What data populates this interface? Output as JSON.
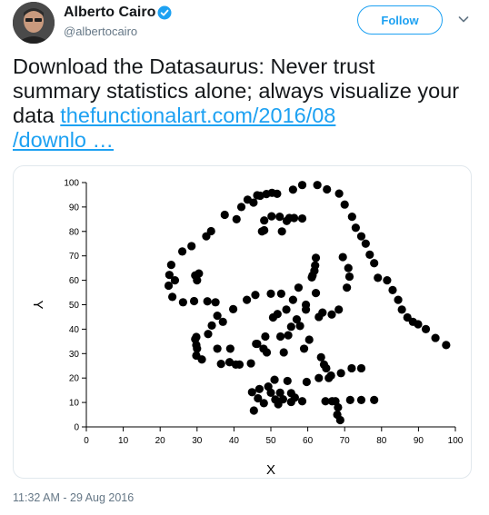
{
  "author": {
    "name": "Alberto Cairo",
    "handle": "@albertocairo",
    "verified_icon": "verified-badge-icon"
  },
  "header": {
    "follow_label": "Follow",
    "menu_icon": "chevron-down-icon"
  },
  "tweet": {
    "text": "Download the Datasaurus: Never trust summary statistics alone; always visualize your data ",
    "link_line1": "thefunctionalart.com/2016/08",
    "link_line2": "/downlo …"
  },
  "timestamp": "11:32 AM - 29 Aug 2016",
  "colors": {
    "accent": "#1da1f2",
    "text": "#14171a",
    "muted": "#657786",
    "border": "#e1e8ed",
    "points": "#000000"
  },
  "chart_data": {
    "type": "scatter",
    "title": "",
    "xlabel": "X",
    "ylabel": "Y",
    "xlim": [
      0,
      100
    ],
    "ylim": [
      0,
      100
    ],
    "xticks": [
      0,
      10,
      20,
      30,
      40,
      50,
      60,
      70,
      80,
      90,
      100
    ],
    "yticks": [
      0,
      10,
      20,
      30,
      40,
      50,
      60,
      70,
      80,
      90,
      100
    ],
    "grid": false,
    "points": [
      [
        22.3,
        57.8
      ],
      [
        22.5,
        62.2
      ],
      [
        23.0,
        66.3
      ],
      [
        23.3,
        53.2
      ],
      [
        24.0,
        60.0
      ],
      [
        26.0,
        71.8
      ],
      [
        26.2,
        51.0
      ],
      [
        28.5,
        74.0
      ],
      [
        29.2,
        51.5
      ],
      [
        29.5,
        62.0
      ],
      [
        30.5,
        62.8
      ],
      [
        30.0,
        60.0
      ],
      [
        29.8,
        36.8
      ],
      [
        29.5,
        35.9
      ],
      [
        30.0,
        32.0
      ],
      [
        29.8,
        29.2
      ],
      [
        29.8,
        33.5
      ],
      [
        31.3,
        27.6
      ],
      [
        32.8,
        51.4
      ],
      [
        34.0,
        41.5
      ],
      [
        32.5,
        78.0
      ],
      [
        33.8,
        80.1
      ],
      [
        35.0,
        51.0
      ],
      [
        35.5,
        32.0
      ],
      [
        36.5,
        25.8
      ],
      [
        37.0,
        43.0
      ],
      [
        37.5,
        86.8
      ],
      [
        38.8,
        26.5
      ],
      [
        39.0,
        32.0
      ],
      [
        39.8,
        48.2
      ],
      [
        40.5,
        25.5
      ],
      [
        40.7,
        85.0
      ],
      [
        41.5,
        25.5
      ],
      [
        42.0,
        90.0
      ],
      [
        43.5,
        52.0
      ],
      [
        43.7,
        93.0
      ],
      [
        44.6,
        26.0
      ],
      [
        44.9,
        14.2
      ],
      [
        45.3,
        91.8
      ],
      [
        45.8,
        54.0
      ],
      [
        45.4,
        6.7
      ],
      [
        46.0,
        34.0
      ],
      [
        46.3,
        94.8
      ],
      [
        46.5,
        11.7
      ],
      [
        46.9,
        15.5
      ],
      [
        47.1,
        94.6
      ],
      [
        47.6,
        80.0
      ],
      [
        48.1,
        9.7
      ],
      [
        48.2,
        80.5
      ],
      [
        48.8,
        95.3
      ],
      [
        48.5,
        37.0
      ],
      [
        48.2,
        84.5
      ],
      [
        48.9,
        30.5
      ],
      [
        49.3,
        16.5
      ],
      [
        50.3,
        95.8
      ],
      [
        50.2,
        86.2
      ],
      [
        50.0,
        54.5
      ],
      [
        50.0,
        14.0
      ],
      [
        50.6,
        44.8
      ],
      [
        51.0,
        19.3
      ],
      [
        51.7,
        95.4
      ],
      [
        51.2,
        11.2
      ],
      [
        51.8,
        46.2
      ],
      [
        52.4,
        86.0
      ],
      [
        52.0,
        9.3
      ],
      [
        52.6,
        37.0
      ],
      [
        52.5,
        14.0
      ],
      [
        52.8,
        54.5
      ],
      [
        53.0,
        80.0
      ],
      [
        53.5,
        30.5
      ],
      [
        53.3,
        11.3
      ],
      [
        54.3,
        84.3
      ],
      [
        55.0,
        85.5
      ],
      [
        54.7,
        37.5
      ],
      [
        54.5,
        18.8
      ],
      [
        54.2,
        48.0
      ],
      [
        55.5,
        41.0
      ],
      [
        55.5,
        13.8
      ],
      [
        55.5,
        10.2
      ],
      [
        56.0,
        52.0
      ],
      [
        56.0,
        97.1
      ],
      [
        56.3,
        85.5
      ],
      [
        56.5,
        12.0
      ],
      [
        57.0,
        44.0
      ],
      [
        57.5,
        57.0
      ],
      [
        57.9,
        41.3
      ],
      [
        58.5,
        85.3
      ],
      [
        58.5,
        10.5
      ],
      [
        58.5,
        99.0
      ],
      [
        59.0,
        32.0
      ],
      [
        59.5,
        50.0
      ],
      [
        59.5,
        48.0
      ],
      [
        59.7,
        18.4
      ],
      [
        60.4,
        35.7
      ],
      [
        61.1,
        61.2
      ],
      [
        61.3,
        62.0
      ],
      [
        61.8,
        63.9
      ],
      [
        62.0,
        66.1
      ],
      [
        62.2,
        69.2
      ],
      [
        62.2,
        54.8
      ],
      [
        62.6,
        99.0
      ],
      [
        63.0,
        20.0
      ],
      [
        63.0,
        45.0
      ],
      [
        63.6,
        28.5
      ],
      [
        64.0,
        46.8
      ],
      [
        64.4,
        25.5
      ],
      [
        64.8,
        10.5
      ],
      [
        65.2,
        97.2
      ],
      [
        65.7,
        20.0
      ],
      [
        65.0,
        24.0
      ],
      [
        66.3,
        21.0
      ],
      [
        66.5,
        46.0
      ],
      [
        66.6,
        10.5
      ],
      [
        67.5,
        10.5
      ],
      [
        68.5,
        95.5
      ],
      [
        68.4,
        48.0
      ],
      [
        68.2,
        8.0
      ],
      [
        68.0,
        5.0
      ],
      [
        68.8,
        2.8
      ],
      [
        69.5,
        69.5
      ],
      [
        69.0,
        22.0
      ],
      [
        70.0,
        91.0
      ],
      [
        70.6,
        57.0
      ],
      [
        71.0,
        65.0
      ],
      [
        71.3,
        61.5
      ],
      [
        71.5,
        11.0
      ],
      [
        71.9,
        24.0
      ],
      [
        72.0,
        86.0
      ],
      [
        73.0,
        81.5
      ],
      [
        74.5,
        24.0
      ],
      [
        74.5,
        11.0
      ],
      [
        74.5,
        78.0
      ],
      [
        75.7,
        75.0
      ],
      [
        76.8,
        70.5
      ],
      [
        78.0,
        11.0
      ],
      [
        78.0,
        67.0
      ],
      [
        79.0,
        61.0
      ],
      [
        81.5,
        60.0
      ],
      [
        83.0,
        56.0
      ],
      [
        84.5,
        52.0
      ],
      [
        85.5,
        48.0
      ],
      [
        87.0,
        44.8
      ],
      [
        88.5,
        43.0
      ],
      [
        89.9,
        42.0
      ],
      [
        92.0,
        40.0
      ],
      [
        94.6,
        36.4
      ],
      [
        97.5,
        33.5
      ],
      [
        46.3,
        34.0
      ],
      [
        48.0,
        32.0
      ],
      [
        33.0,
        38.0
      ],
      [
        35.5,
        45.5
      ]
    ]
  }
}
